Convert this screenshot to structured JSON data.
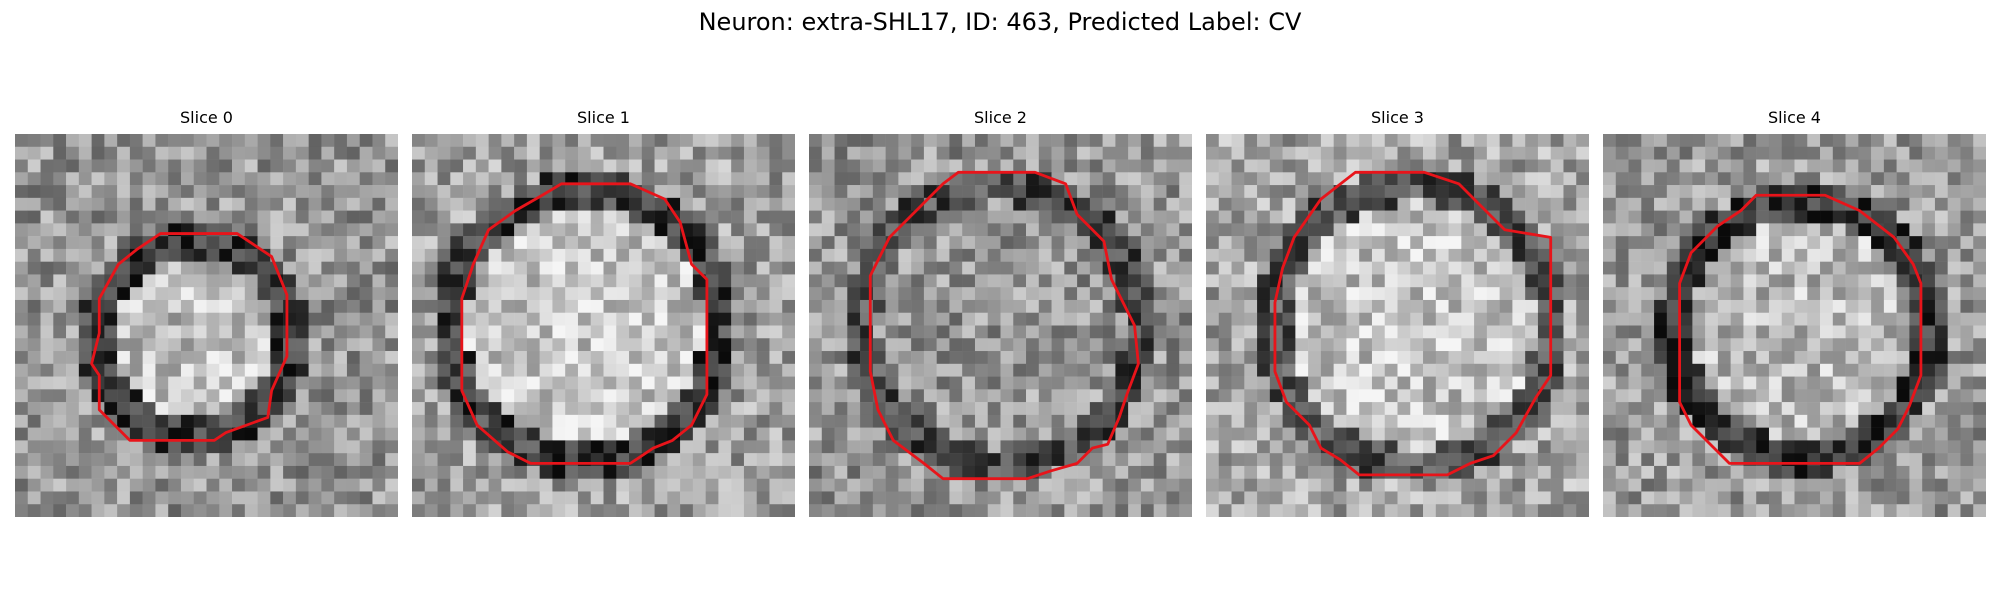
{
  "figure": {
    "title": "Neuron: extra-SHL17, ID: 463, Predicted Label: CV",
    "contour_color": "#e8141a",
    "image_colormap": "grayscale"
  },
  "slices": [
    {
      "title": "Slice 0",
      "contour": [
        [
          0.38,
          0.26
        ],
        [
          0.58,
          0.26
        ],
        [
          0.67,
          0.32
        ],
        [
          0.71,
          0.42
        ],
        [
          0.71,
          0.58
        ],
        [
          0.67,
          0.67
        ],
        [
          0.66,
          0.74
        ],
        [
          0.55,
          0.78
        ],
        [
          0.52,
          0.8
        ],
        [
          0.3,
          0.8
        ],
        [
          0.22,
          0.72
        ],
        [
          0.22,
          0.63
        ],
        [
          0.2,
          0.6
        ],
        [
          0.22,
          0.52
        ],
        [
          0.22,
          0.43
        ],
        [
          0.27,
          0.34
        ],
        [
          0.32,
          0.3
        ]
      ]
    },
    {
      "title": "Slice 1",
      "contour": [
        [
          0.39,
          0.13
        ],
        [
          0.57,
          0.13
        ],
        [
          0.66,
          0.17
        ],
        [
          0.7,
          0.23
        ],
        [
          0.73,
          0.34
        ],
        [
          0.77,
          0.38
        ],
        [
          0.77,
          0.68
        ],
        [
          0.73,
          0.76
        ],
        [
          0.68,
          0.8
        ],
        [
          0.63,
          0.82
        ],
        [
          0.57,
          0.86
        ],
        [
          0.31,
          0.86
        ],
        [
          0.25,
          0.83
        ],
        [
          0.17,
          0.76
        ],
        [
          0.13,
          0.67
        ],
        [
          0.13,
          0.43
        ],
        [
          0.16,
          0.34
        ],
        [
          0.2,
          0.25
        ],
        [
          0.27,
          0.2
        ],
        [
          0.34,
          0.16
        ]
      ]
    },
    {
      "title": "Slice 2",
      "contour": [
        [
          0.39,
          0.1
        ],
        [
          0.59,
          0.1
        ],
        [
          0.67,
          0.13
        ],
        [
          0.7,
          0.21
        ],
        [
          0.77,
          0.28
        ],
        [
          0.79,
          0.38
        ],
        [
          0.85,
          0.5
        ],
        [
          0.86,
          0.6
        ],
        [
          0.83,
          0.68
        ],
        [
          0.81,
          0.74
        ],
        [
          0.78,
          0.81
        ],
        [
          0.74,
          0.82
        ],
        [
          0.7,
          0.86
        ],
        [
          0.63,
          0.88
        ],
        [
          0.57,
          0.9
        ],
        [
          0.35,
          0.9
        ],
        [
          0.3,
          0.86
        ],
        [
          0.22,
          0.8
        ],
        [
          0.18,
          0.72
        ],
        [
          0.16,
          0.62
        ],
        [
          0.16,
          0.37
        ],
        [
          0.21,
          0.27
        ],
        [
          0.28,
          0.2
        ],
        [
          0.35,
          0.13
        ]
      ]
    },
    {
      "title": "Slice 3",
      "contour": [
        [
          0.39,
          0.1
        ],
        [
          0.57,
          0.1
        ],
        [
          0.66,
          0.13
        ],
        [
          0.73,
          0.2
        ],
        [
          0.78,
          0.25
        ],
        [
          0.9,
          0.27
        ],
        [
          0.9,
          0.63
        ],
        [
          0.86,
          0.69
        ],
        [
          0.81,
          0.78
        ],
        [
          0.75,
          0.84
        ],
        [
          0.69,
          0.86
        ],
        [
          0.63,
          0.89
        ],
        [
          0.4,
          0.89
        ],
        [
          0.35,
          0.85
        ],
        [
          0.3,
          0.82
        ],
        [
          0.27,
          0.76
        ],
        [
          0.21,
          0.7
        ],
        [
          0.18,
          0.62
        ],
        [
          0.18,
          0.44
        ],
        [
          0.2,
          0.35
        ],
        [
          0.23,
          0.27
        ],
        [
          0.3,
          0.17
        ]
      ]
    },
    {
      "title": "Slice 4",
      "contour": [
        [
          0.4,
          0.16
        ],
        [
          0.58,
          0.16
        ],
        [
          0.67,
          0.2
        ],
        [
          0.76,
          0.27
        ],
        [
          0.81,
          0.34
        ],
        [
          0.83,
          0.39
        ],
        [
          0.83,
          0.63
        ],
        [
          0.8,
          0.71
        ],
        [
          0.77,
          0.77
        ],
        [
          0.72,
          0.82
        ],
        [
          0.67,
          0.86
        ],
        [
          0.33,
          0.86
        ],
        [
          0.28,
          0.81
        ],
        [
          0.23,
          0.76
        ],
        [
          0.2,
          0.7
        ],
        [
          0.2,
          0.39
        ],
        [
          0.23,
          0.31
        ],
        [
          0.3,
          0.24
        ],
        [
          0.36,
          0.2
        ]
      ]
    }
  ]
}
